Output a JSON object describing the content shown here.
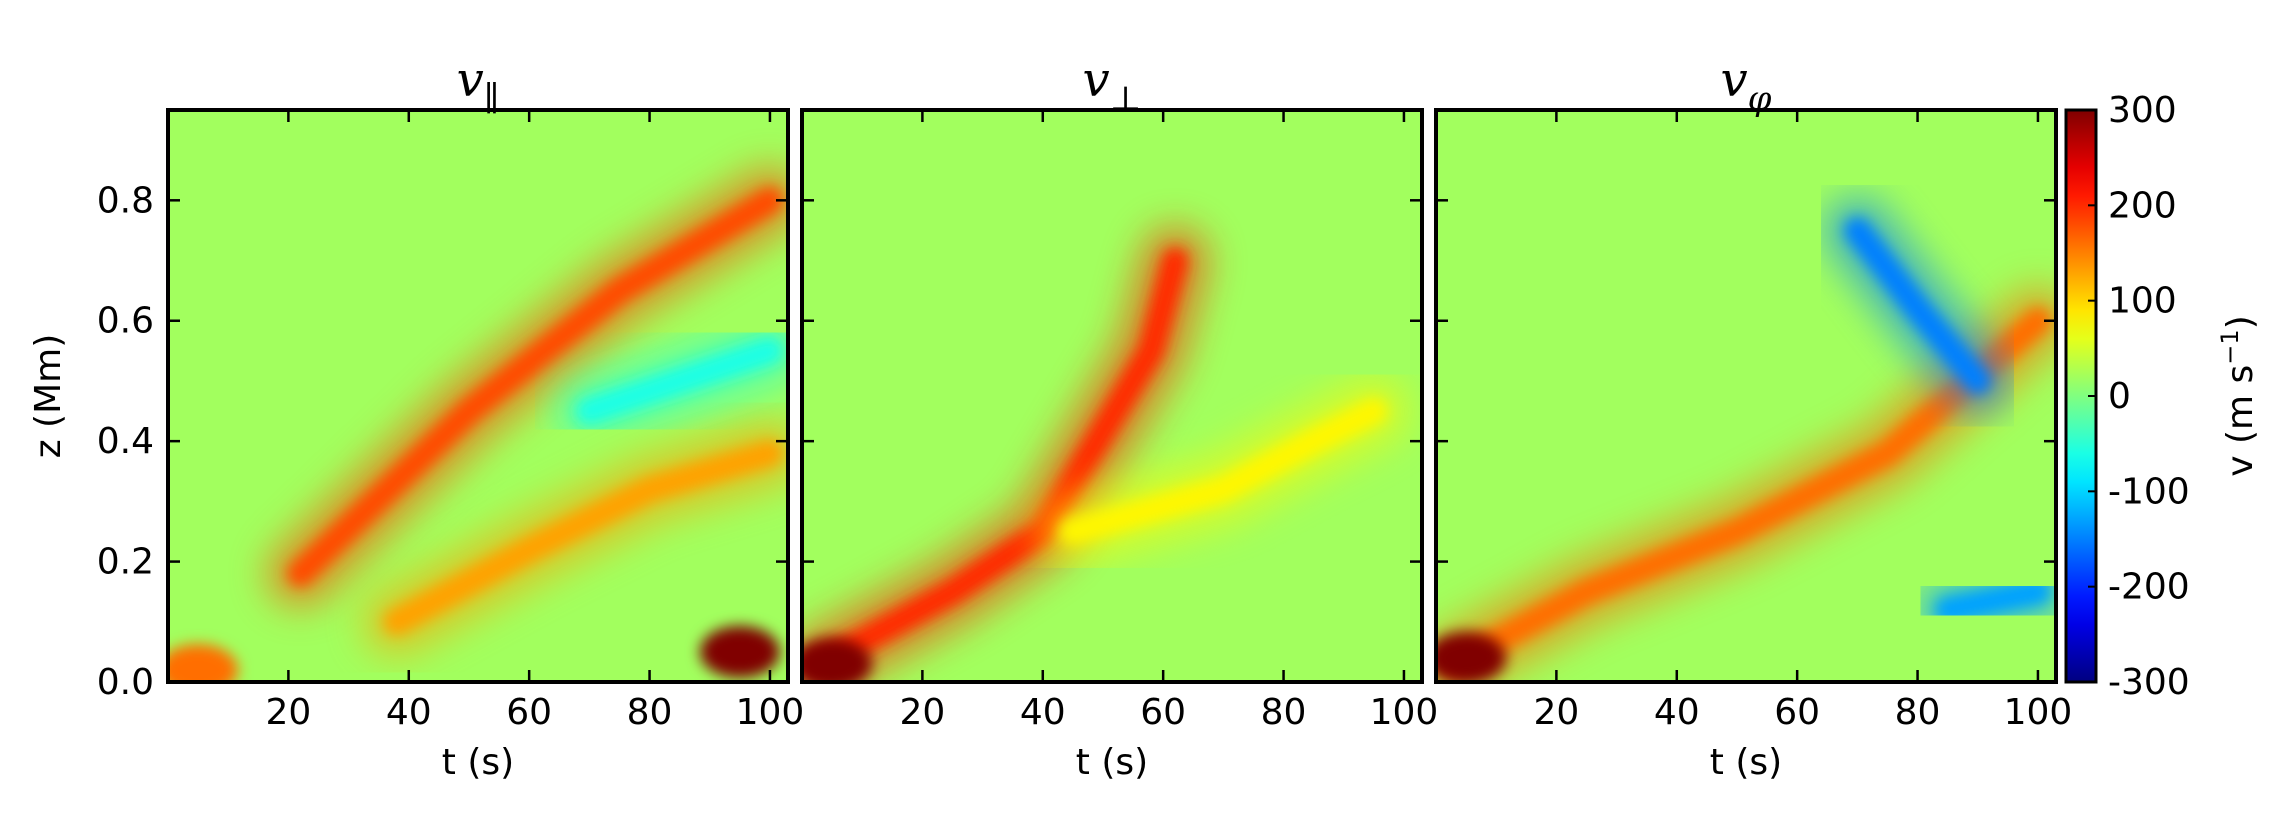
{
  "chart_data": [
    {
      "type": "heatmap",
      "title": "v_∥",
      "title_main": "v",
      "title_sub": "∥",
      "xlabel": "t (s)",
      "ylabel": "z (Mm)",
      "xlim": [
        0,
        103
      ],
      "ylim": [
        0,
        0.95
      ],
      "xticks": [
        20,
        40,
        60,
        80,
        100
      ],
      "yticks": [
        0.0,
        0.2,
        0.4,
        0.6,
        0.8
      ],
      "features": [
        {
          "kind": "ridge",
          "path": [
            [
              22,
              0.18
            ],
            [
              50,
              0.45
            ],
            [
              75,
              0.65
            ],
            [
              100,
              0.8
            ]
          ],
          "value": 180
        },
        {
          "kind": "ridge",
          "path": [
            [
              38,
              0.1
            ],
            [
              60,
              0.22
            ],
            [
              80,
              0.32
            ],
            [
              100,
              0.38
            ]
          ],
          "value": 130
        },
        {
          "kind": "trough",
          "path": [
            [
              70,
              0.45
            ],
            [
              100,
              0.55
            ]
          ],
          "value": -60
        },
        {
          "kind": "blob",
          "center": [
            95,
            0.05
          ],
          "value": 300
        },
        {
          "kind": "blob",
          "center": [
            5,
            0.02
          ],
          "value": 160
        }
      ]
    },
    {
      "type": "heatmap",
      "title": "v_⊥",
      "title_main": "v",
      "title_sub": "⊥",
      "xlabel": "t (s)",
      "ylabel": "",
      "xlim": [
        0,
        103
      ],
      "ylim": [
        0,
        0.95
      ],
      "xticks": [
        20,
        40,
        60,
        80,
        100
      ],
      "yticks": [
        0.0,
        0.2,
        0.4,
        0.6,
        0.8
      ],
      "features": [
        {
          "kind": "ridge",
          "path": [
            [
              3,
              0.03
            ],
            [
              25,
              0.15
            ],
            [
              40,
              0.25
            ],
            [
              58,
              0.55
            ],
            [
              62,
              0.7
            ]
          ],
          "value": 200
        },
        {
          "kind": "ridge",
          "path": [
            [
              45,
              0.25
            ],
            [
              70,
              0.32
            ],
            [
              85,
              0.4
            ],
            [
              95,
              0.45
            ]
          ],
          "value": 80
        },
        {
          "kind": "blob",
          "center": [
            5,
            0.03
          ],
          "value": 300
        }
      ]
    },
    {
      "type": "heatmap",
      "title": "v_φ",
      "title_main": "v",
      "title_sub": "φ",
      "xlabel": "t (s)",
      "ylabel": "",
      "xlim": [
        0,
        103
      ],
      "ylim": [
        0,
        0.95
      ],
      "xticks": [
        20,
        40,
        60,
        80,
        100
      ],
      "yticks": [
        0.0,
        0.2,
        0.4,
        0.6,
        0.8
      ],
      "features": [
        {
          "kind": "ridge",
          "path": [
            [
              3,
              0.03
            ],
            [
              25,
              0.15
            ],
            [
              50,
              0.25
            ],
            [
              75,
              0.38
            ],
            [
              100,
              0.6
            ]
          ],
          "value": 160
        },
        {
          "kind": "trough",
          "path": [
            [
              70,
              0.75
            ],
            [
              80,
              0.62
            ],
            [
              90,
              0.5
            ]
          ],
          "value": -150
        },
        {
          "kind": "trough",
          "path": [
            [
              85,
              0.12
            ],
            [
              100,
              0.15
            ]
          ],
          "value": -130
        },
        {
          "kind": "blob",
          "center": [
            5,
            0.04
          ],
          "value": 300
        }
      ]
    }
  ],
  "colorbar": {
    "label": "v (m s",
    "label_sup": "−1",
    "label_close": ")",
    "range": [
      -300,
      300
    ],
    "ticks": [
      300,
      200,
      100,
      0,
      -100,
      -200,
      -300
    ],
    "tick_labels": [
      "300",
      "200",
      "100",
      "0",
      "-100",
      "-200",
      "-300"
    ],
    "colormap": "jet"
  }
}
